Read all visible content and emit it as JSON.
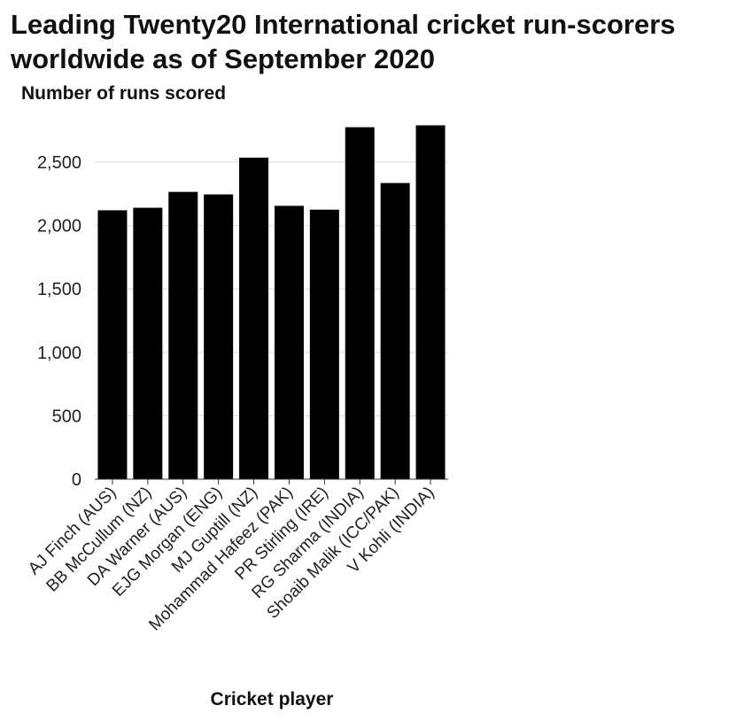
{
  "chart_data": {
    "type": "bar",
    "title": "Leading Twenty20 International cricket run-scorers worldwide as of September 2020",
    "xlabel": "Cricket player",
    "ylabel": "Number of runs scored",
    "categories": [
      "AJ Finch (AUS)",
      "BB McCullum (NZ)",
      "DA Warner (AUS)",
      "EJG Morgan (ENG)",
      "MJ Guptill (NZ)",
      "Mohammad Hafeez (PAK)",
      "PR Stirling (IRE)",
      "RG Sharma (INDIA)",
      "Shoaib Malik (ICC/PAK)",
      "V Kohli (INDIA)"
    ],
    "values": [
      2120,
      2140,
      2265,
      2245,
      2535,
      2155,
      2125,
      2775,
      2335,
      2790
    ],
    "ylim": [
      0,
      2800
    ],
    "yticks": [
      0,
      500,
      1000,
      1500,
      2000,
      2500
    ],
    "ytick_labels": [
      "0",
      "500",
      "1,000",
      "1,500",
      "2,000",
      "2,500"
    ],
    "grid": true,
    "bar_color": "#000000"
  }
}
